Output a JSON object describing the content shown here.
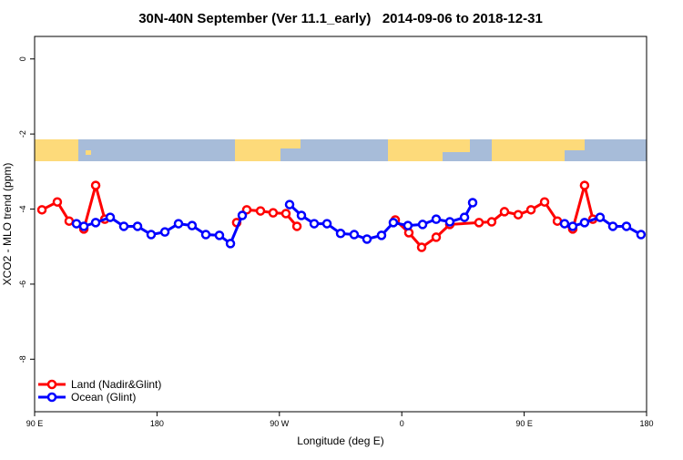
{
  "chart_data": {
    "type": "line",
    "title": "30N-40N September (Ver 11.1_early)   2014-09-06 to 2018-12-31",
    "x_label": "Longitude (deg E)",
    "y_label": "XCO2 - MLO trend (ppm)",
    "xlim": [
      90,
      540
    ],
    "xticks": [
      {
        "value": 90,
        "label": "90 E"
      },
      180,
      {
        "value": 270,
        "label": "90 W"
      },
      {
        "value": 360,
        "label": "0"
      },
      {
        "value": 450,
        "label": "90 E"
      },
      {
        "value": 540,
        "label": "180"
      }
    ],
    "ylim": [
      -9.4,
      0.6
    ],
    "yticks": [
      0,
      -2,
      -4,
      -6,
      -8
    ],
    "legend": "bottom-left",
    "series": [
      {
        "name": "Land (Nadir&Glint)",
        "color": "#ff0000",
        "x": [
          95.4,
          106.7,
          115.4,
          126.2,
          134.9,
          141.6,
          null,
          238.6,
          246.0,
          256.1,
          265.4,
          274.8,
          282.9,
          null,
          355.2,
          365.2,
          374.6,
          385.3,
          395.3,
          416.8,
          426.1,
          435.5,
          445.6,
          455.0,
          465.0,
          474.4,
          485.7,
          494.4,
          500.5
        ],
        "values": [
          -4.02,
          -3.81,
          -4.32,
          -4.53,
          -3.37,
          -4.27,
          null,
          -4.36,
          -4.02,
          -4.05,
          -4.1,
          -4.12,
          -4.46,
          null,
          -4.29,
          -4.63,
          -5.02,
          -4.75,
          -4.41,
          -4.36,
          -4.34,
          -4.07,
          -4.15,
          -4.02,
          -3.81,
          -4.32,
          -4.53,
          -3.37,
          -4.27
        ]
      },
      {
        "name": "Ocean (Glint)",
        "color": "#0000ff",
        "x": [
          120.8,
          126.2,
          134.9,
          145.6,
          155.6,
          165.7,
          175.7,
          185.8,
          195.8,
          205.8,
          215.9,
          225.9,
          234.0,
          242.7,
          null,
          277.5,
          286.2,
          295.6,
          305.0,
          315.0,
          325.0,
          334.4,
          345.1,
          353.8,
          364.5,
          375.3,
          385.3,
          395.3,
          406.1,
          412.1,
          null,
          479.7,
          485.7,
          494.4,
          505.8,
          515.2,
          525.2,
          535.9
        ],
        "values": [
          -4.39,
          -4.46,
          -4.36,
          -4.22,
          -4.46,
          -4.46,
          -4.68,
          -4.61,
          -4.39,
          -4.44,
          -4.68,
          -4.7,
          -4.92,
          -4.17,
          null,
          -3.88,
          -4.17,
          -4.39,
          -4.39,
          -4.65,
          -4.68,
          -4.8,
          -4.7,
          -4.36,
          -4.44,
          -4.41,
          -4.27,
          -4.34,
          -4.22,
          -3.83,
          null,
          -4.39,
          -4.46,
          -4.36,
          -4.22,
          -4.46,
          -4.46,
          -4.68
        ]
      }
    ]
  }
}
